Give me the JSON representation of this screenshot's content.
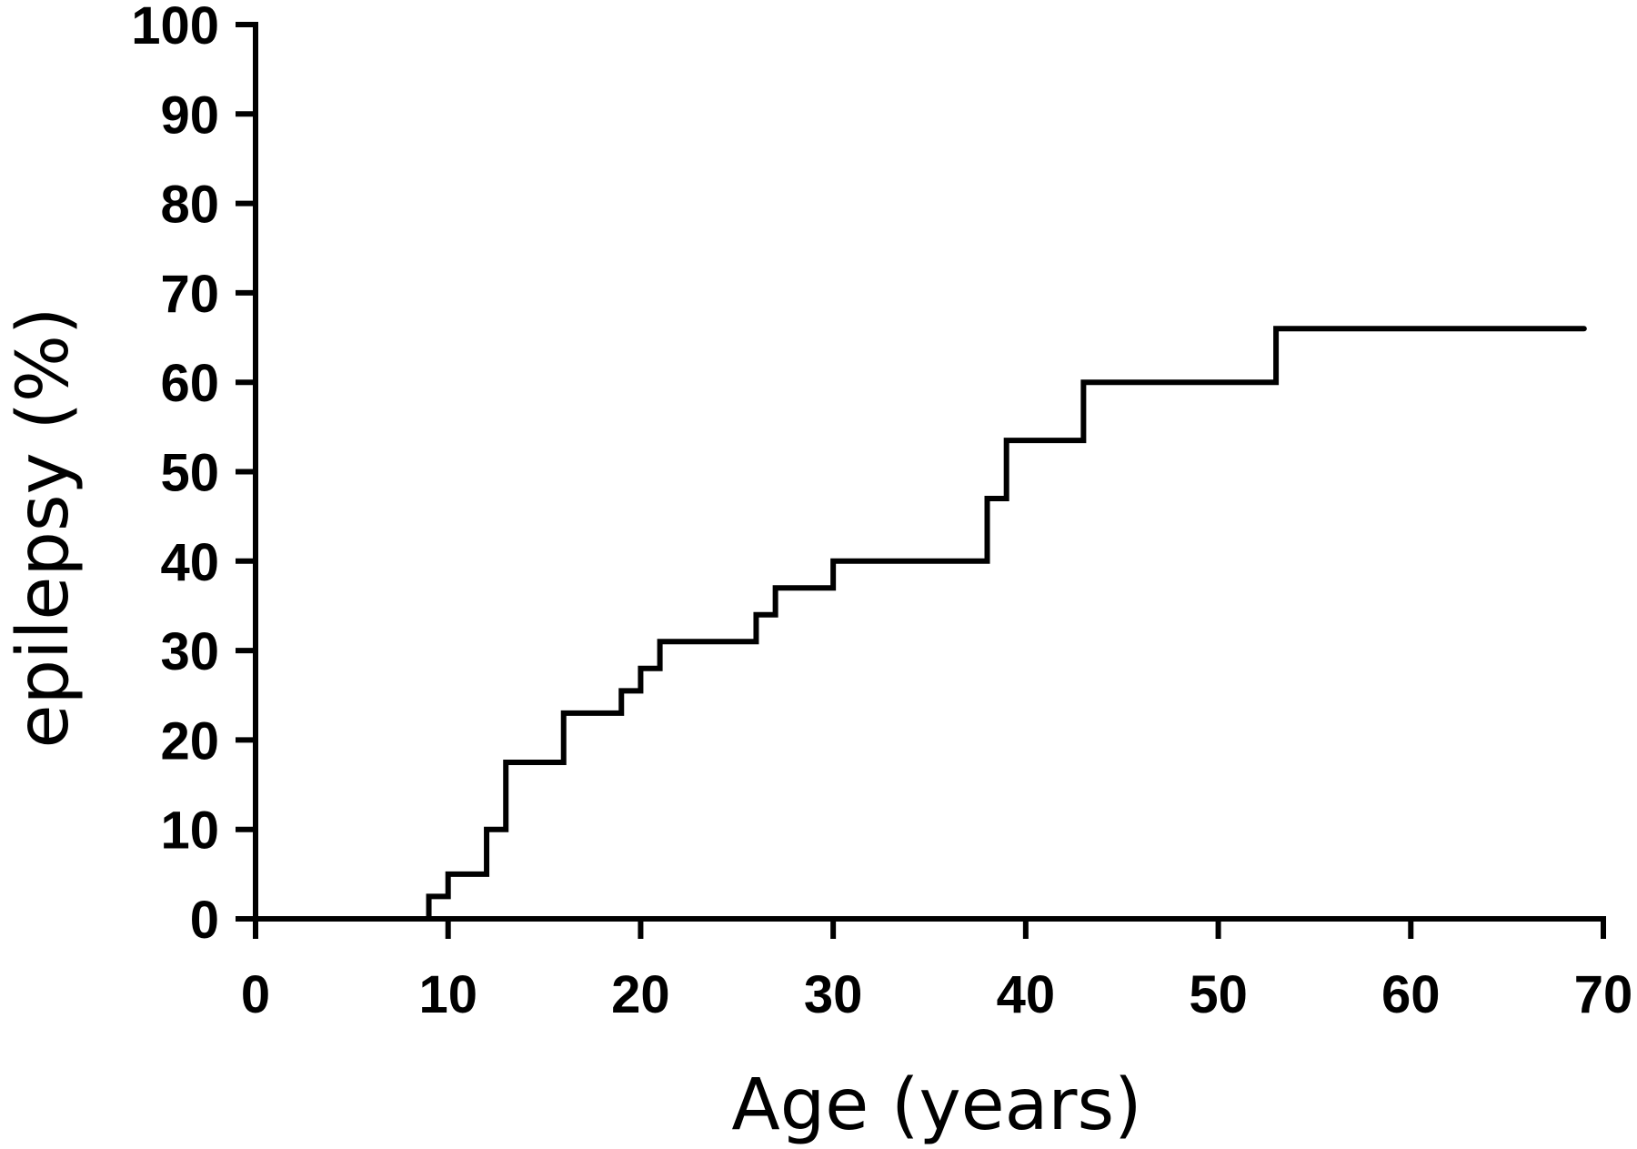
{
  "colors": {
    "line": "#000000",
    "axis": "#000000",
    "background": "#ffffff"
  },
  "chart_data": {
    "type": "line",
    "step": "post",
    "title": "",
    "xlabel": "Age (years)",
    "ylabel": "epilepsy (%)",
    "xlim": [
      0,
      70
    ],
    "ylim": [
      0,
      100
    ],
    "xticks": [
      "0",
      "10",
      "20",
      "30",
      "40",
      "50",
      "60",
      "70"
    ],
    "yticks": [
      "0",
      "10",
      "20",
      "30",
      "40",
      "50",
      "60",
      "70",
      "80",
      "90",
      "100"
    ],
    "grid": false,
    "legend": "none",
    "series": [
      {
        "x": [
          0,
          9,
          10,
          12,
          13,
          16,
          19,
          20,
          21,
          26,
          27,
          30,
          38,
          39,
          43,
          53,
          69
        ],
        "y": [
          0,
          2.5,
          5,
          10,
          17.5,
          23,
          25.5,
          28,
          31,
          34,
          37,
          40,
          47,
          53.5,
          60,
          66,
          66
        ]
      }
    ]
  }
}
